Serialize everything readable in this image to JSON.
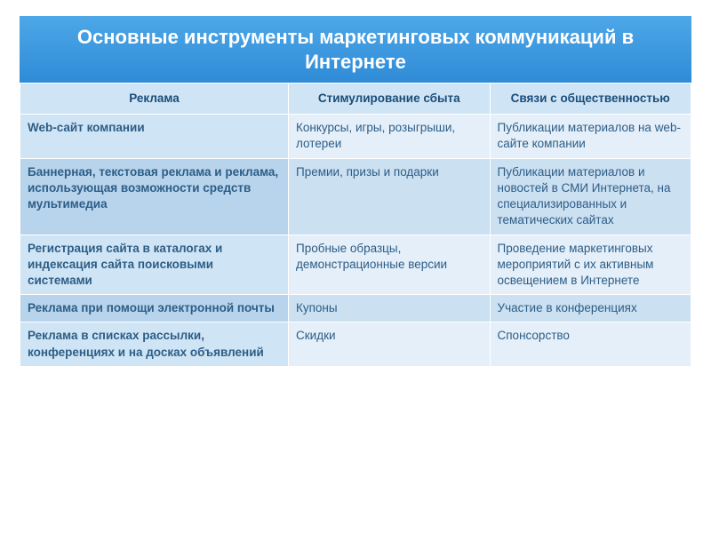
{
  "title": "Основные инструменты маркетинговых коммуникаций в Интернете",
  "table": {
    "type": "table",
    "column_widths_pct": [
      40,
      30,
      30
    ],
    "header_bg": "#cfe5f5",
    "header_fg": "#1a4d7a",
    "row_light_bg": "#e4eff9",
    "row_light_lead_bg": "#cfe5f5",
    "row_dark_bg": "#cbe0f1",
    "row_dark_lead_bg": "#b7d4ec",
    "cell_fg": "#2d5d86",
    "lead_fg": "#2372b0",
    "title_bg_from": "#4da7e8",
    "title_bg_to": "#2f8bd6",
    "title_fg": "#ffffff",
    "title_fontsize_pt": 22,
    "cell_fontsize_pt": 13.5,
    "columns": [
      "Реклама",
      "Стимулирование сбыта",
      "Связи с общественностью"
    ],
    "rows": [
      [
        "Web-сайт компании",
        "Конкурсы, игры, розыгрыши, лотереи",
        "Публикации материалов на web-сайте компании"
      ],
      [
        "Баннерная, текстовая реклама и реклама, использующая возможности средств мультимедиа",
        "Премии, призы и подарки",
        "Публикации материалов и новостей в СМИ Интернета, на специализированных и тематических сайтах"
      ],
      [
        "Регистрация сайта в каталогах и индексация сайта поисковыми системами",
        "Пробные образцы, демонстрационные версии",
        "Проведение маркетинговых мероприятий с их активным освещением в Интернете"
      ],
      [
        "Реклама при помощи электронной почты",
        "Купоны",
        "Участие в конференциях"
      ],
      [
        "Реклама в списках рассылки, конференциях и на досках объявлений",
        "Скидки",
        "Спонсорство"
      ]
    ]
  }
}
